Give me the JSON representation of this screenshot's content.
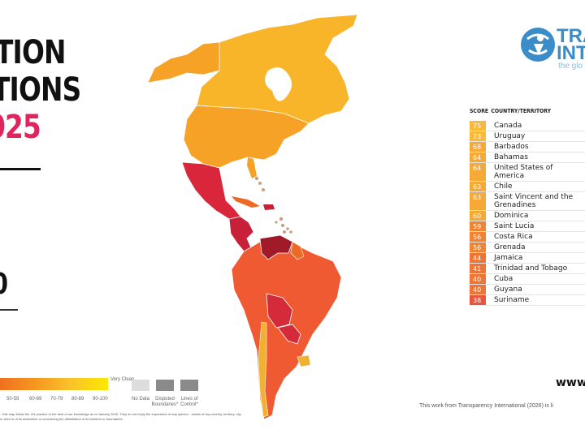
{
  "title": {
    "line1": "TION",
    "line2": "TIONS",
    "year": "025"
  },
  "global_score": "0",
  "legend": {
    "ticks": [
      "50-59",
      "60-69",
      "70-79",
      "80-89",
      "90-100"
    ],
    "very_clean": "Very Clean",
    "no_data": "No Data",
    "disputed": "Disputed Boundaries*",
    "lines_of_control": "Lines of Control*",
    "gradient_colors": [
      "#f07020",
      "#f59a20",
      "#f9c22a",
      "#fde800"
    ],
    "no_data_color": "#dddddd",
    "boundary_color": "#8a8a8a"
  },
  "disclaimer": "...this map follow the UN practice to the best of our knowledge as of January 2026. They do not imply the expression of any opinion ...status of any country, territory, city or area or of its authorities or concerning the delimitation of its frontiers or boundaries.",
  "logo": {
    "line1": "TRA",
    "line2": "INT",
    "tagline": "the glo",
    "color": "#3a8dc9"
  },
  "table": {
    "headers": {
      "score": "SCORE",
      "country": "COUNTRY/TERRITORY"
    },
    "rows": [
      {
        "score": "75",
        "country": "Canada",
        "color": "#f9b52a"
      },
      {
        "score": "73",
        "country": "Uruguay",
        "color": "#f9b52a"
      },
      {
        "score": "68",
        "country": "Barbados",
        "color": "#f5a226"
      },
      {
        "score": "64",
        "country": "Bahamas",
        "color": "#f5a226"
      },
      {
        "score": "64",
        "country": "United States of America",
        "color": "#f5a226"
      },
      {
        "score": "63",
        "country": "Chile",
        "color": "#f5a226"
      },
      {
        "score": "63",
        "country": "Saint Vincent and the Grenadines",
        "color": "#f5a226"
      },
      {
        "score": "60",
        "country": "Dominica",
        "color": "#f5a226"
      },
      {
        "score": "59",
        "country": "Saint Lucia",
        "color": "#f07a22"
      },
      {
        "score": "56",
        "country": "Costa Rica",
        "color": "#f07a22"
      },
      {
        "score": "56",
        "country": "Grenada",
        "color": "#f07a22"
      },
      {
        "score": "44",
        "country": "Jamaica",
        "color": "#ec6a24"
      },
      {
        "score": "41",
        "country": "Trinidad and Tobago",
        "color": "#ec6a24"
      },
      {
        "score": "40",
        "country": "Cuba",
        "color": "#ec6a24"
      },
      {
        "score": "40",
        "country": "Guyana",
        "color": "#ec6a24"
      },
      {
        "score": "38",
        "country": "Suriname",
        "color": "#e44a2e"
      }
    ]
  },
  "footer": {
    "www": "www",
    "license": "This work from Transparency International (2026) is li"
  },
  "map": {
    "colors": {
      "canada": "#f9b52a",
      "usa": "#f5a226",
      "mexico": "#d9263a",
      "central_america": "#c9203a",
      "venezuela": "#a01a2a",
      "south_america": "#f05a32",
      "bolivia_paraguay": "#d42a3a",
      "chile_uruguay": "#f0b030",
      "caribbean_islands": "#c8a080"
    }
  }
}
